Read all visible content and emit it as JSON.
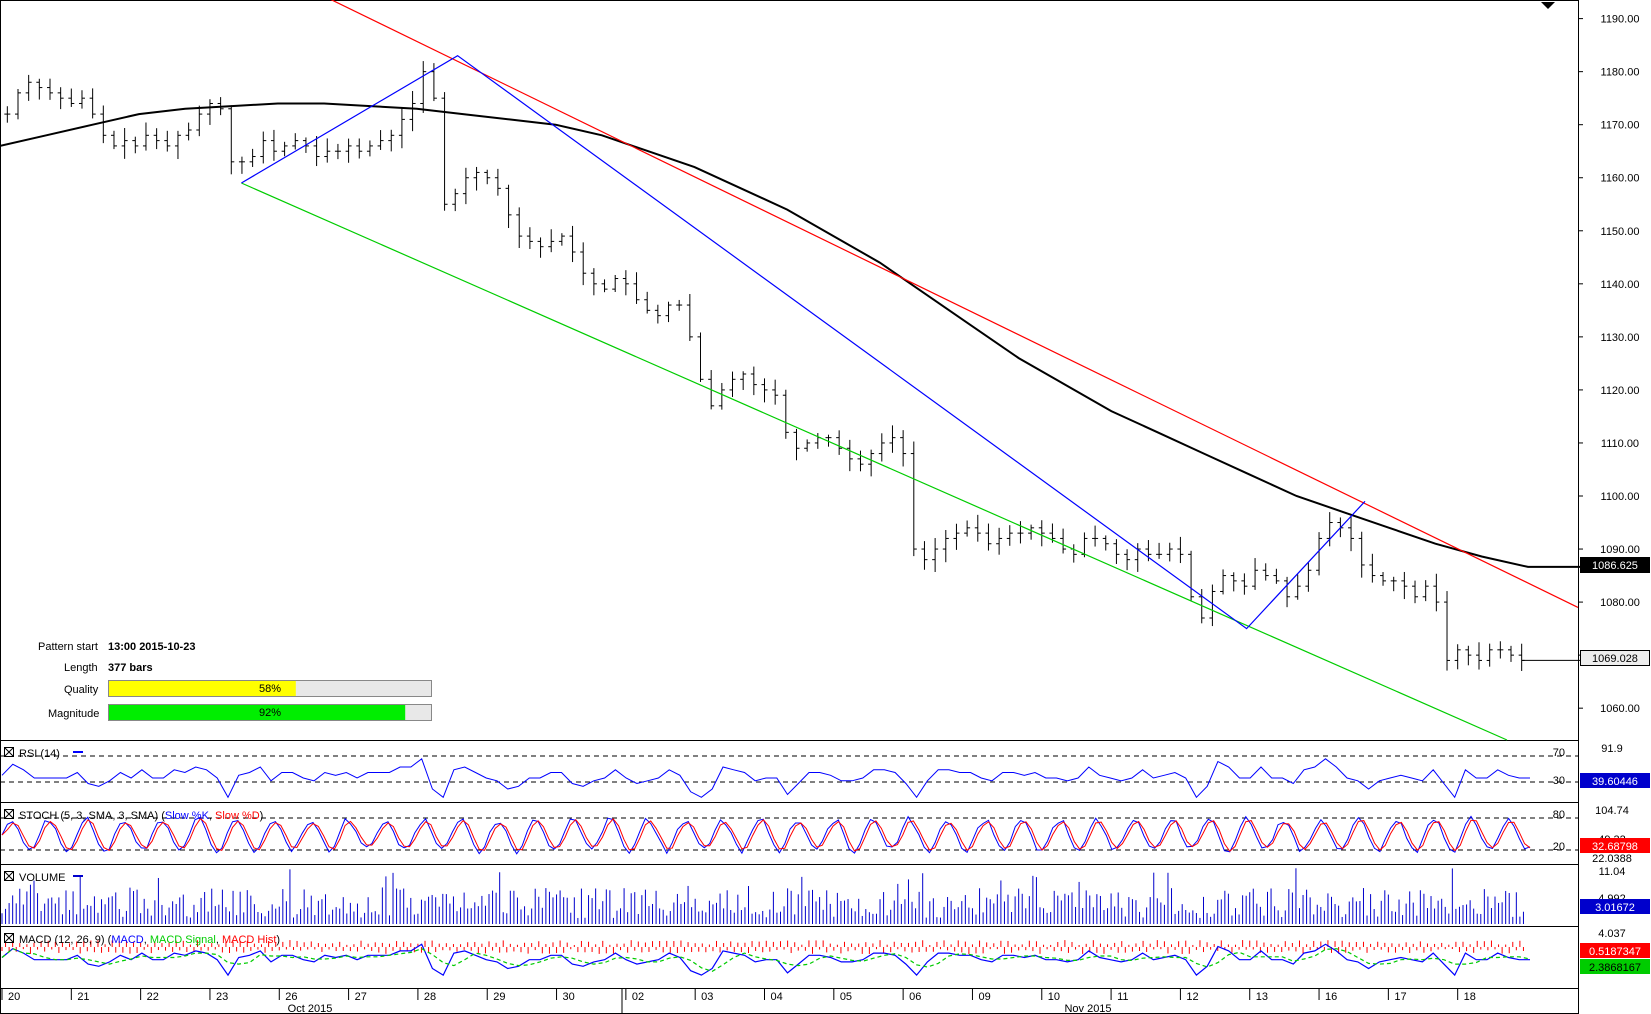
{
  "chart_data": {
    "type": "ohlc",
    "instrument_price": {
      "last_price": "1069.028",
      "ma_value": "1086.625",
      "y_ticks": [
        "1060.00",
        "1070.00",
        "1080.00",
        "1090.00",
        "1100.00",
        "1110.00",
        "1120.00",
        "1130.00",
        "1140.00",
        "1150.00",
        "1160.00",
        "1170.00",
        "1180.00",
        "1190.00"
      ],
      "ylim": [
        1054,
        1192
      ],
      "closes": [
        1172,
        1176,
        1178,
        1177,
        1176,
        1175,
        1174,
        1175,
        1172,
        1168,
        1166,
        1167,
        1166,
        1168,
        1167,
        1166,
        1168,
        1169,
        1172,
        1174,
        1173,
        1163,
        1163,
        1164,
        1167,
        1165,
        1166,
        1167,
        1166,
        1164,
        1165,
        1165,
        1166,
        1165,
        1166,
        1167,
        1168,
        1171,
        1174,
        1180,
        1175,
        1155,
        1157,
        1160,
        1161,
        1160,
        1158,
        1153,
        1149,
        1148,
        1147,
        1148,
        1149,
        1146,
        1142,
        1140,
        1139,
        1141,
        1140,
        1137,
        1135,
        1134,
        1136,
        1136,
        1130,
        1122,
        1117,
        1120,
        1122,
        1123,
        1121,
        1120,
        1119,
        1112,
        1109,
        1110,
        1111,
        1111,
        1109,
        1107,
        1106,
        1108,
        1110,
        1111,
        1108,
        1090,
        1088,
        1090,
        1092,
        1093,
        1094,
        1093,
        1091,
        1092,
        1093,
        1093,
        1094,
        1093,
        1092,
        1090,
        1089,
        1092,
        1092,
        1091,
        1089,
        1088,
        1090,
        1089,
        1089,
        1090,
        1089,
        1081,
        1077,
        1082,
        1085,
        1084,
        1083,
        1086,
        1085,
        1084,
        1081,
        1083,
        1086,
        1092,
        1095,
        1094,
        1092,
        1087,
        1085,
        1084,
        1084,
        1083,
        1081,
        1083,
        1080,
        1069,
        1071,
        1070,
        1069,
        1071,
        1071,
        1070,
        1069
      ],
      "ma_line": [
        1166,
        1168,
        1170,
        1172,
        1173,
        1173.5,
        1174,
        1174,
        1173.5,
        1173,
        1172,
        1171,
        1170,
        1168,
        1165,
        1162,
        1158,
        1154,
        1149,
        1144,
        1138,
        1132,
        1126,
        1121,
        1116,
        1112,
        1108,
        1104,
        1100,
        1097,
        1094,
        1091,
        1088.6,
        1086.625
      ],
      "resistance_line": [
        {
          "x": 0.2,
          "y": 1195
        },
        {
          "x": 1.0,
          "y": 1079
        }
      ],
      "support_line": [
        {
          "x": 0.153,
          "y": 1159
        },
        {
          "x": 0.955,
          "y": 1054
        }
      ],
      "zigzag": [
        {
          "x": 0.153,
          "y": 1159
        },
        {
          "x": 0.29,
          "y": 1183
        },
        {
          "x": 0.79,
          "y": 1075
        },
        {
          "x": 0.865,
          "y": 1099
        }
      ]
    },
    "rsi": {
      "label": "RSI (14)",
      "levels": [
        "70",
        "30"
      ],
      "top_value": "91.9",
      "current": "39.60446"
    },
    "stoch": {
      "label": "STOCH (5, 3, SMA, 3, SMA) (",
      "series": [
        "Slow %K",
        "Slow %D"
      ],
      "levels": [
        "80",
        "20"
      ],
      "top_value": "104.74",
      "mid_value": "49.32",
      "low_value": "22.0388",
      "current": "32.68798"
    },
    "volume": {
      "label": "VOLUME",
      "top_value": "11.04",
      "mid_value": "4.992",
      "current": "3.01672"
    },
    "macd": {
      "label": "MACD (12, 26, 9) (",
      "series": [
        "MACD",
        "MACD Signal",
        "MACD Hist"
      ],
      "top_value": "4.037",
      "macd_value": "0.5187347",
      "signal_value": "2.3868167"
    },
    "x_ticks": [
      "20",
      "21",
      "22",
      "23",
      "26",
      "27",
      "28",
      "29",
      "30",
      "02",
      "03",
      "04",
      "05",
      "06",
      "09",
      "10",
      "11",
      "12",
      "13",
      "16",
      "17",
      "18"
    ],
    "x_month_labels": [
      "Oct 2015",
      "Nov 2015"
    ]
  },
  "pattern_info": {
    "start_label": "Pattern start",
    "start_value": "13:00 2015-10-23",
    "length_label": "Length",
    "length_value": "377 bars",
    "quality_label": "Quality",
    "quality_value": "58%",
    "quality_fraction": 0.58,
    "magnitude_label": "Magnitude",
    "magnitude_value": "92%",
    "magnitude_fraction": 0.92
  },
  "colors": {
    "resistance": "#ff0000",
    "support": "#00cc00",
    "zigzag": "#0000ff",
    "ma": "#000000",
    "bars": "#000000",
    "rsi": "#0000ff",
    "stoch_k": "#0000ff",
    "stoch_d": "#ff0000",
    "volume": "#0000cc",
    "macd": "#0000ff",
    "macd_signal": "#00cc00",
    "macd_hist": "#ff0000",
    "quality_bar": "#ffff00",
    "magnitude_bar": "#00ee00",
    "label_red": "#ff0000",
    "label_green": "#00cc00",
    "label_dark": "#000000"
  }
}
